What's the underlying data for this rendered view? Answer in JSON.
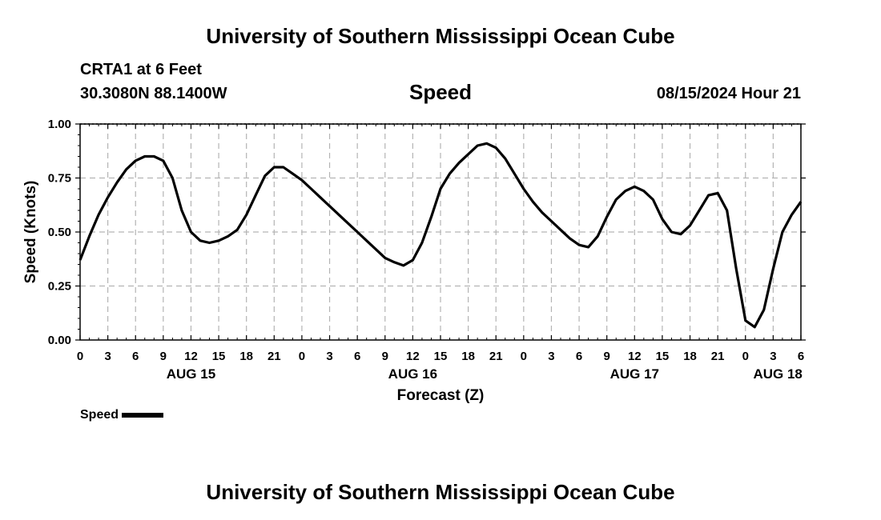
{
  "header": {
    "org_title": "University of Southern Mississippi Ocean Cube",
    "station": "CRTA1 at 6 Feet",
    "coordinates": "30.3080N  88.1400W",
    "valid_time": "08/15/2024 Hour 21",
    "footer_title": "University of Southern Mississippi Ocean Cube"
  },
  "legend": {
    "label": "Speed"
  },
  "colors": {
    "line": "#000000",
    "grid": "#b4b4b4",
    "background": "#ffffff"
  },
  "chart_data": {
    "type": "line",
    "title": "Speed",
    "xlabel": "Forecast (Z)",
    "ylabel": "Speed (Knots)",
    "xlim": [
      0,
      78
    ],
    "ylim": [
      0,
      1
    ],
    "grid": true,
    "legend_position": "bottom-left",
    "x_ticks": [
      0,
      3,
      6,
      9,
      12,
      15,
      18,
      21,
      24,
      27,
      30,
      33,
      36,
      39,
      42,
      45,
      48,
      51,
      54,
      57,
      60,
      63,
      66,
      69,
      72,
      75,
      78
    ],
    "x_tick_labels": [
      "0",
      "3",
      "6",
      "9",
      "12",
      "15",
      "18",
      "21",
      "0",
      "3",
      "6",
      "9",
      "12",
      "15",
      "18",
      "21",
      "0",
      "3",
      "6",
      "9",
      "12",
      "15",
      "18",
      "21",
      "0",
      "3",
      "6"
    ],
    "y_ticks": [
      0,
      0.25,
      0.5,
      0.75,
      1.0
    ],
    "y_tick_labels": [
      "0.00",
      "0.25",
      "0.50",
      "0.75",
      "1.00"
    ],
    "day_labels": [
      {
        "text": "AUG 15",
        "x": 12
      },
      {
        "text": "AUG 16",
        "x": 36
      },
      {
        "text": "AUG 17",
        "x": 60
      },
      {
        "text": "AUG 18",
        "x": 75.5
      }
    ],
    "series": [
      {
        "name": "Speed",
        "x": [
          0,
          1,
          2,
          3,
          4,
          5,
          6,
          7,
          8,
          9,
          10,
          11,
          12,
          13,
          14,
          15,
          16,
          17,
          18,
          19,
          20,
          21,
          22,
          23,
          24,
          25,
          26,
          27,
          28,
          29,
          30,
          31,
          32,
          33,
          34,
          35,
          36,
          37,
          38,
          39,
          40,
          41,
          42,
          43,
          44,
          45,
          46,
          47,
          48,
          49,
          50,
          51,
          52,
          53,
          54,
          55,
          56,
          57,
          58,
          59,
          60,
          61,
          62,
          63,
          64,
          65,
          66,
          67,
          68,
          69,
          70,
          71,
          72,
          73,
          74,
          75,
          76,
          77,
          78
        ],
        "values": [
          0.37,
          0.48,
          0.58,
          0.66,
          0.73,
          0.79,
          0.83,
          0.85,
          0.85,
          0.83,
          0.75,
          0.6,
          0.5,
          0.46,
          0.45,
          0.46,
          0.48,
          0.51,
          0.58,
          0.67,
          0.76,
          0.8,
          0.8,
          0.77,
          0.74,
          0.7,
          0.66,
          0.62,
          0.58,
          0.54,
          0.5,
          0.46,
          0.42,
          0.38,
          0.36,
          0.345,
          0.37,
          0.45,
          0.57,
          0.7,
          0.77,
          0.82,
          0.86,
          0.9,
          0.91,
          0.89,
          0.84,
          0.77,
          0.7,
          0.64,
          0.59,
          0.55,
          0.51,
          0.47,
          0.44,
          0.43,
          0.48,
          0.57,
          0.65,
          0.69,
          0.71,
          0.69,
          0.65,
          0.56,
          0.5,
          0.49,
          0.53,
          0.6,
          0.67,
          0.68,
          0.6,
          0.33,
          0.09,
          0.06,
          0.14,
          0.33,
          0.5,
          0.58,
          0.64
        ]
      }
    ]
  }
}
